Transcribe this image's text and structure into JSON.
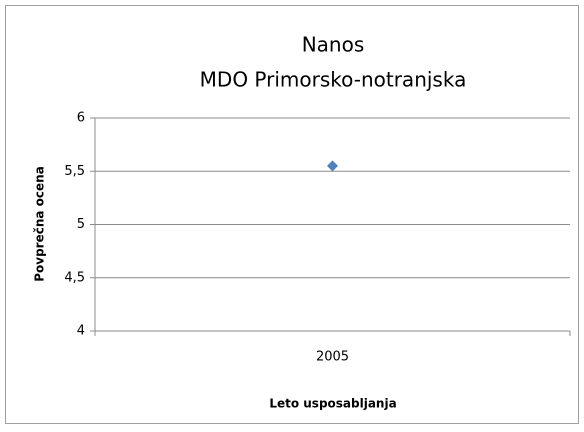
{
  "chart_data": {
    "type": "line",
    "title": "Nanos",
    "subtitle": "MDO Primorsko-notranjska",
    "x_label": "Leto usposabljanja",
    "y_label": "Povprečna ocena",
    "categories": [
      "2005"
    ],
    "series": [
      {
        "name": "Nanos",
        "color": "#4f81bd",
        "marker": "diamond",
        "values": [
          5.55
        ]
      }
    ],
    "ylim": [
      4,
      6
    ],
    "yticks": [
      4,
      {
        "value": 4.5,
        "label": "4,5"
      },
      5,
      {
        "value": 5.5,
        "label": "5,5"
      },
      6
    ],
    "grid": true,
    "legend": false
  }
}
